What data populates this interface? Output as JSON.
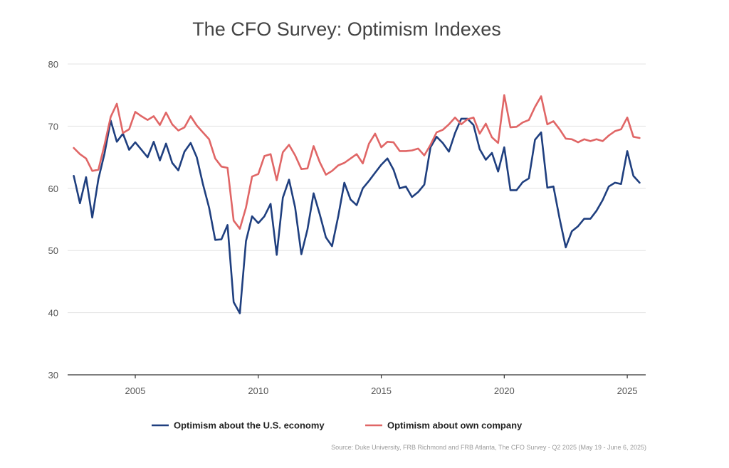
{
  "chart_data": {
    "type": "line",
    "title": "The CFO Survey: Optimism Indexes",
    "source": "Source: Duke University, FRB Richmond and FRB Atlanta, The CFO Survey - Q2 2025 (May 19 - June 6, 2025)",
    "xlim": [
      2002.25,
      2025.75
    ],
    "ylim": [
      30,
      80
    ],
    "yticks": [
      30,
      40,
      50,
      60,
      70,
      80
    ],
    "xticks": [
      2005,
      2010,
      2015,
      2020,
      2025
    ],
    "grid": true,
    "legend_position": "bottom",
    "x_start": 2002.5,
    "x_step": 0.25,
    "series": [
      {
        "name": "Optimism about the U.S. economy",
        "color": "#1f3f7f",
        "values": [
          62.0,
          57.6,
          61.8,
          55.3,
          61.5,
          65.6,
          70.9,
          67.5,
          68.8,
          66.2,
          67.4,
          66.2,
          65.0,
          67.5,
          64.5,
          67.2,
          64.1,
          62.9,
          65.9,
          67.3,
          65.0,
          60.7,
          56.9,
          51.7,
          51.8,
          54.1,
          41.7,
          39.9,
          51.5,
          55.5,
          54.4,
          55.5,
          57.5,
          49.3,
          58.5,
          61.4,
          56.9,
          49.4,
          53.4,
          59.2,
          55.8,
          52.1,
          50.7,
          55.5,
          60.9,
          58.2,
          57.3,
          60.0,
          61.2,
          62.5,
          63.8,
          64.8,
          63.0,
          60.0,
          60.3,
          58.6,
          59.4,
          60.6,
          66.6,
          68.3,
          67.3,
          65.9,
          68.9,
          71.2,
          71.2,
          70.2,
          66.3,
          64.6,
          65.7,
          62.7,
          66.6,
          59.7,
          59.7,
          61.0,
          61.6,
          67.8,
          69.0,
          60.1,
          60.3,
          55.1,
          50.5,
          53.1,
          53.9,
          55.1,
          55.1,
          56.4,
          58.1,
          60.3,
          60.9,
          60.7,
          66.0,
          62.0,
          60.9
        ]
      },
      {
        "name": "Optimism about own company",
        "color": "#e06666",
        "values": [
          66.5,
          65.5,
          64.8,
          62.8,
          63.0,
          67.0,
          71.5,
          73.6,
          68.9,
          69.5,
          72.3,
          71.6,
          71.0,
          71.6,
          70.2,
          72.2,
          70.3,
          69.3,
          69.8,
          71.6,
          70.1,
          69.0,
          67.9,
          64.8,
          63.5,
          63.3,
          54.8,
          53.5,
          56.9,
          61.9,
          62.3,
          65.2,
          65.5,
          61.3,
          65.8,
          67.0,
          65.3,
          63.1,
          63.2,
          66.8,
          64.2,
          62.2,
          62.8,
          63.7,
          64.1,
          64.8,
          65.5,
          64.0,
          67.2,
          68.8,
          66.6,
          67.5,
          67.4,
          66.0,
          66.0,
          66.1,
          66.4,
          65.3,
          67.0,
          69.0,
          69.4,
          70.3,
          71.4,
          70.3,
          71.1,
          71.4,
          68.8,
          70.4,
          68.2,
          67.3,
          75.0,
          69.8,
          69.9,
          70.6,
          71.0,
          73.1,
          74.8,
          70.3,
          70.8,
          69.5,
          68.0,
          67.9,
          67.4,
          67.9,
          67.6,
          67.9,
          67.6,
          68.5,
          69.2,
          69.5,
          71.4,
          68.3,
          68.1
        ]
      }
    ]
  }
}
